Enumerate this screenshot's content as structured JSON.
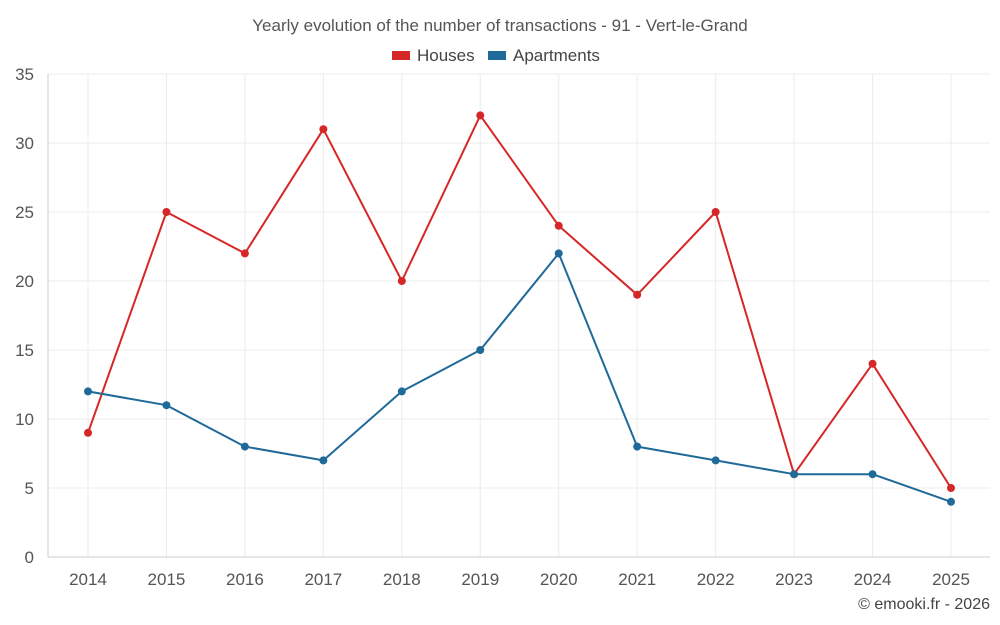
{
  "chart_data": {
    "type": "line",
    "title": "Yearly evolution of the number of transactions - 91 - Vert-le-Grand",
    "xlabel": "",
    "ylabel": "",
    "categories": [
      "2014",
      "2015",
      "2016",
      "2017",
      "2018",
      "2019",
      "2020",
      "2021",
      "2022",
      "2023",
      "2024",
      "2025"
    ],
    "ylim": [
      0,
      35
    ],
    "yticks": [
      0,
      5,
      10,
      15,
      20,
      25,
      30,
      35
    ],
    "grid": true,
    "legend_position": "top-center",
    "series": [
      {
        "name": "Houses",
        "color": "#d62728",
        "values": [
          9,
          25,
          22,
          31,
          20,
          32,
          24,
          19,
          25,
          6,
          14,
          5
        ]
      },
      {
        "name": "Apartments",
        "color": "#1f6a99",
        "values": [
          12,
          11,
          8,
          7,
          12,
          15,
          22,
          8,
          7,
          6,
          6,
          4
        ]
      }
    ],
    "credit": "© emooki.fr - 2026"
  }
}
